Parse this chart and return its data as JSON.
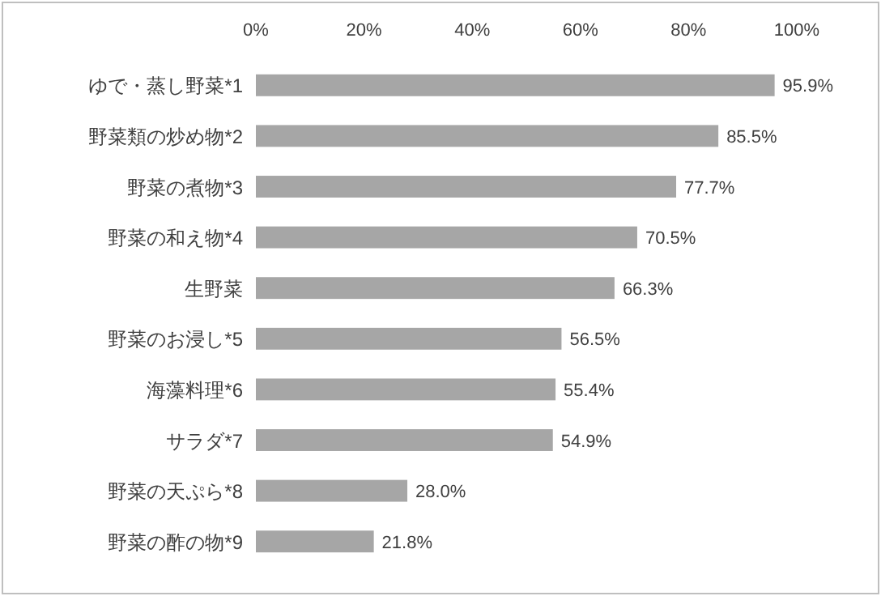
{
  "chart_data": {
    "type": "bar",
    "orientation": "horizontal",
    "categories": [
      "ゆで・蒸し野菜*1",
      "野菜類の炒め物*2",
      "野菜の煮物*3",
      "野菜の和え物*4",
      "生野菜",
      "野菜のお浸し*5",
      "海藻料理*6",
      "サラダ*7",
      "野菜の天ぷら*8",
      "野菜の酢の物*9"
    ],
    "values": [
      95.9,
      85.5,
      77.7,
      70.5,
      66.3,
      56.5,
      55.4,
      54.9,
      28.0,
      21.8
    ],
    "value_labels": [
      "95.9%",
      "85.5%",
      "77.7%",
      "70.5%",
      "66.3%",
      "56.5%",
      "55.4%",
      "54.9%",
      "28.0%",
      "21.8%"
    ],
    "color": "#a6a6a6",
    "xlim": [
      0,
      100
    ],
    "xticks": [
      {
        "value": 0,
        "label": "0%"
      },
      {
        "value": 20,
        "label": "20%"
      },
      {
        "value": 40,
        "label": "40%"
      },
      {
        "value": 60,
        "label": "60%"
      },
      {
        "value": 80,
        "label": "80%"
      },
      {
        "value": 100,
        "label": "100%"
      }
    ],
    "grid": false
  }
}
